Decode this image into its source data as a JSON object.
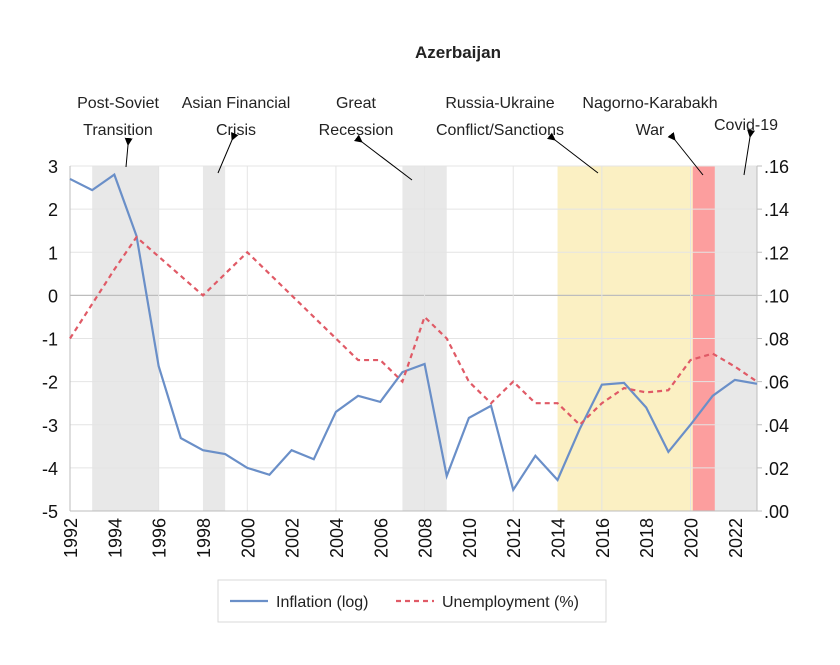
{
  "chart_data": {
    "type": "line",
    "title": "Azerbaijan",
    "x": [
      1992,
      1993,
      1994,
      1995,
      1996,
      1997,
      1998,
      1999,
      2000,
      2001,
      2002,
      2003,
      2004,
      2005,
      2006,
      2007,
      2008,
      2009,
      2010,
      2011,
      2012,
      2013,
      2014,
      2015,
      2016,
      2017,
      2018,
      2019,
      2020,
      2021,
      2022,
      2023
    ],
    "series": [
      {
        "name": "Inflation (log)",
        "axis": "left",
        "color": "#6a8fc8",
        "style": "solid",
        "values": [
          2.7,
          2.44,
          2.8,
          1.38,
          -1.64,
          -3.31,
          -3.59,
          -3.68,
          -4.0,
          -4.16,
          -3.59,
          -3.8,
          -2.7,
          -2.33,
          -2.47,
          -1.78,
          -1.59,
          -4.19,
          -2.84,
          -2.56,
          -4.51,
          -3.72,
          -4.28,
          -3.1,
          -2.07,
          -2.03,
          -2.6,
          -3.63,
          -3.0,
          -2.33,
          -1.96,
          -2.05
        ]
      },
      {
        "name": "Unemployment (%)",
        "axis": "right",
        "color": "#e05a66",
        "style": "dashed",
        "values": [
          0.08,
          0.096,
          0.112,
          0.127,
          0.118,
          0.109,
          0.1,
          0.11,
          0.12,
          0.11,
          0.1,
          0.09,
          0.08,
          0.07,
          0.07,
          0.06,
          0.09,
          0.08,
          0.06,
          0.05,
          0.06,
          0.05,
          0.05,
          0.04,
          0.05,
          0.057,
          0.055,
          0.056,
          0.07,
          0.073,
          0.067,
          0.06
        ]
      }
    ],
    "xlim": [
      1992,
      2023
    ],
    "ylim_left": [
      -5,
      3
    ],
    "ylim_right": [
      0,
      0.16
    ],
    "x_ticks": [
      "1992",
      "1994",
      "1996",
      "1998",
      "2000",
      "2002",
      "2004",
      "2006",
      "2008",
      "2010",
      "2012",
      "2014",
      "2016",
      "2018",
      "2020",
      "2022"
    ],
    "y_ticks_left": [
      "3",
      "2",
      "1",
      "0",
      "-1",
      "-2",
      "-3",
      "-4",
      "-5"
    ],
    "y_ticks_right": [
      ".16",
      ".14",
      ".12",
      ".10",
      ".08",
      ".06",
      ".04",
      ".02",
      ".00"
    ],
    "grid": true,
    "legend_placement": "bottom",
    "shaded_periods": [
      {
        "start": 1993,
        "end": 1996,
        "color": "#e8e8e8"
      },
      {
        "start": 1998,
        "end": 1999,
        "color": "#e8e8e8"
      },
      {
        "start": 2007,
        "end": 2009,
        "color": "#e8e8e8"
      },
      {
        "start": 2014,
        "end": 2020.1,
        "color": "#fbf0c3"
      },
      {
        "start": 2020.1,
        "end": 2021.1,
        "color": "#fc9e9e"
      },
      {
        "start": 2021.1,
        "end": 2023,
        "color": "#e8e8e8"
      }
    ],
    "annotations": [
      {
        "lines": [
          "Post-Soviet",
          "Transition"
        ]
      },
      {
        "lines": [
          "Asian Financial",
          "Crisis"
        ]
      },
      {
        "lines": [
          "Great",
          "Recession"
        ]
      },
      {
        "lines": [
          "Russia-Ukraine",
          "Conflict/Sanctions"
        ]
      },
      {
        "lines": [
          "Nagorno-Karabakh",
          "War"
        ]
      },
      {
        "lines": [
          "Covid-19"
        ]
      }
    ]
  }
}
